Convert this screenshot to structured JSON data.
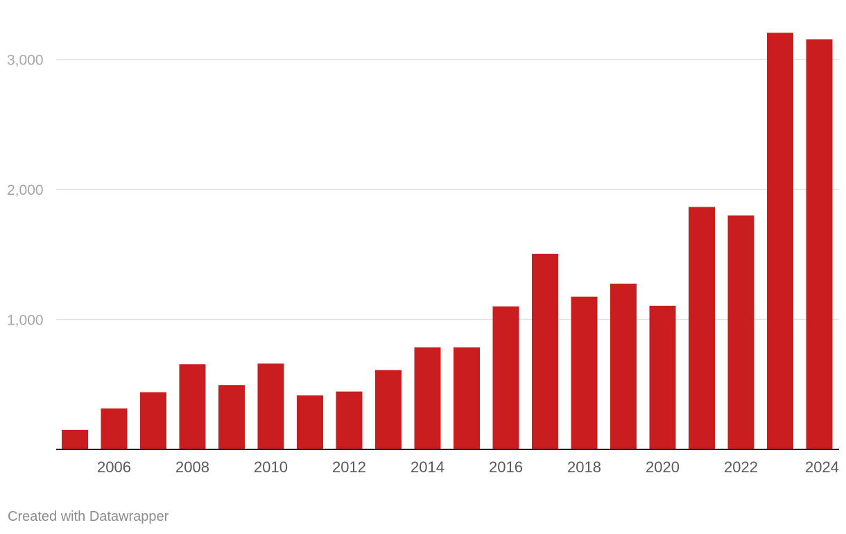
{
  "chart_data": {
    "type": "bar",
    "title": "",
    "xlabel": "",
    "ylabel": "",
    "categories": [
      "2005",
      "2006",
      "2007",
      "2008",
      "2009",
      "2010",
      "2011",
      "2012",
      "2013",
      "2014",
      "2015",
      "2016",
      "2017",
      "2018",
      "2019",
      "2020",
      "2021",
      "2022",
      "2023",
      "2024"
    ],
    "series": [
      {
        "values": [
          150,
          315,
          440,
          655,
          495,
          660,
          415,
          445,
          610,
          785,
          785,
          1100,
          1505,
          1175,
          1275,
          1105,
          1865,
          1800,
          3205,
          3155
        ]
      }
    ],
    "x_tick_labels": [
      "2006",
      "2008",
      "2010",
      "2012",
      "2014",
      "2016",
      "2018",
      "2020",
      "2022",
      "2024"
    ],
    "y_ticks": [
      1000,
      2000,
      3000
    ],
    "y_tick_labels": [
      "1,000",
      "2,000",
      "3,000"
    ],
    "ylim": [
      0,
      3300
    ],
    "grid": true,
    "legend": "none",
    "colors": {
      "bar": "#c91d1f",
      "grid": "#e0e0e0",
      "axis": "#222222",
      "tick_text": "#a6a6a6",
      "x_label_text": "#595959"
    }
  },
  "footer": {
    "credit": "Created with Datawrapper"
  }
}
